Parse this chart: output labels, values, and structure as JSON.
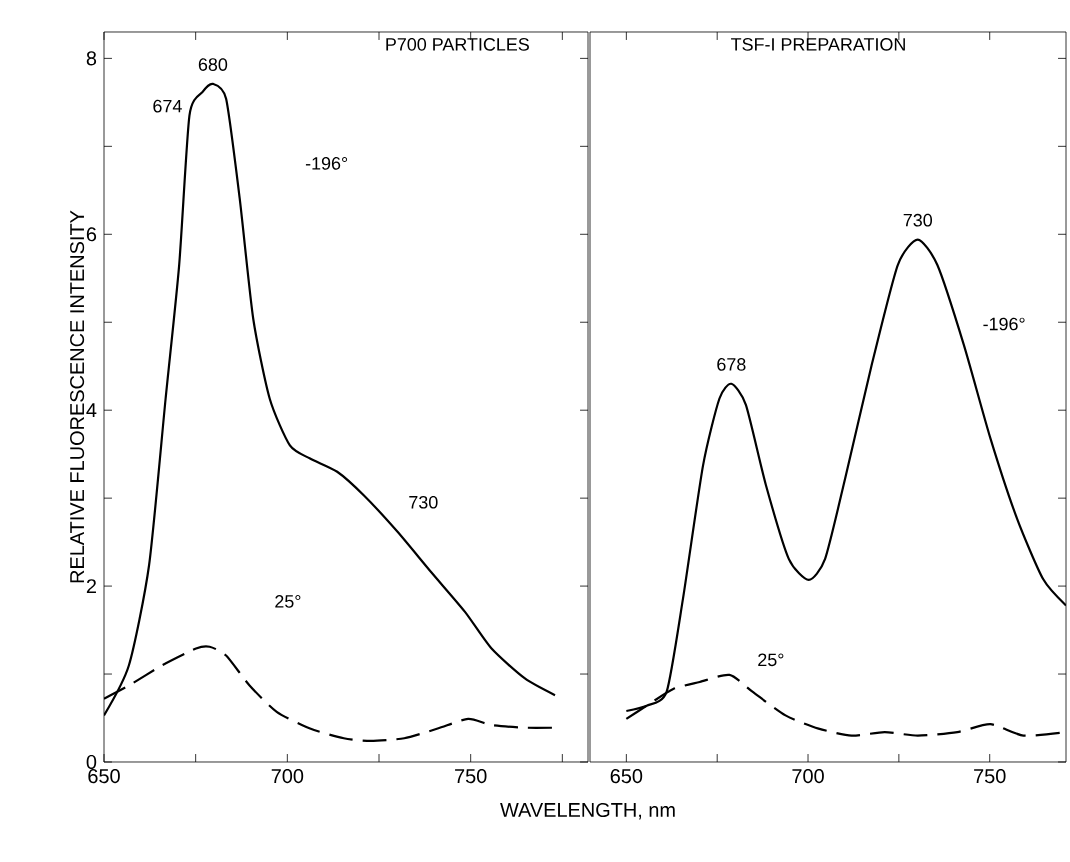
{
  "chart_data": [
    {
      "type": "line",
      "title": "P700 PARTICLES",
      "xlabel": "WAVELENGTH, nm",
      "ylabel": "RELATIVE FLUORESCENCE INTENSITY",
      "xlim": [
        650,
        782
      ],
      "xticks": [
        650,
        {
          "value": 675,
          "label": null
        },
        700,
        {
          "value": 725,
          "label": null
        },
        750,
        {
          "value": 775,
          "label": null
        }
      ],
      "ylim": [
        0,
        8.3
      ],
      "yticks": [
        0,
        {
          "value": 1,
          "label": null
        },
        2,
        {
          "value": 3,
          "label": null
        },
        4,
        {
          "value": 5,
          "label": null
        },
        6,
        {
          "value": 7,
          "label": null
        },
        8
      ],
      "series": [
        {
          "color": "#000000",
          "line_style": "solid",
          "x": [
            650,
            656.8,
            662.3,
            666.8,
            670.5,
            673.3,
            676.9,
            679.7,
            683.3,
            687,
            690.7,
            695.2,
            700.7,
            706.2,
            713.6,
            720.9,
            730,
            739.2,
            748.4,
            755.7,
            764.8,
            773
          ],
          "values": [
            0.53,
            1.1,
            2.24,
            4.13,
            5.65,
            7.35,
            7.62,
            7.71,
            7.54,
            6.41,
            5.04,
            4.13,
            3.6,
            3.45,
            3.3,
            3.03,
            2.62,
            2.16,
            1.71,
            1.29,
            0.95,
            0.76
          ]
        },
        {
          "color": "#000000",
          "line_style": "dashed",
          "x": [
            650,
            656.8,
            665.9,
            675.1,
            678.8,
            683.3,
            689.7,
            697.1,
            706.2,
            715.4,
            722.7,
            731.9,
            741,
            749.3,
            755.7,
            764.8,
            773
          ],
          "values": [
            0.72,
            0.87,
            1.1,
            1.29,
            1.31,
            1.21,
            0.87,
            0.57,
            0.38,
            0.27,
            0.24,
            0.27,
            0.38,
            0.49,
            0.42,
            0.39,
            0.39
          ]
        }
      ],
      "annotations": [
        {
          "text": "674",
          "x": 673.3,
          "y": 7.35
        },
        {
          "text": "680",
          "x": 679.7,
          "y": 7.71
        },
        {
          "text": "730",
          "x": 730,
          "y": 2.62
        },
        "-196°",
        "25°"
      ]
    },
    {
      "type": "line",
      "title": "TSF-I PREPARATION",
      "tick_labels": "x",
      "xlim": [
        640,
        771
      ],
      "xticks": [
        650,
        {
          "value": 675,
          "label": null
        },
        700,
        {
          "value": 725,
          "label": null
        },
        750
      ],
      "ylim": [
        0,
        8.3
      ],
      "yticks": [
        0,
        {
          "value": 1,
          "label": null
        },
        2,
        {
          "value": 3,
          "label": null
        },
        4,
        {
          "value": 5,
          "label": null
        },
        6,
        {
          "value": 7,
          "label": null
        },
        8
      ],
      "series": [
        {
          "color": "#000000",
          "line_style": "solid",
          "x": [
            650,
            655.6,
            661.1,
            665.6,
            671.1,
            675.6,
            678.9,
            682.9,
            688.4,
            694.7,
            700.2,
            704.7,
            710.2,
            717.5,
            724.7,
            730.2,
            735.6,
            742.9,
            750.2,
            757.5,
            764.7,
            771
          ],
          "values": [
            0.58,
            0.64,
            0.8,
            1.86,
            3.37,
            4.13,
            4.3,
            4.06,
            3.15,
            2.31,
            2.07,
            2.31,
            3.22,
            4.51,
            5.65,
            5.94,
            5.65,
            4.74,
            3.68,
            2.77,
            2.08,
            1.78
          ]
        },
        {
          "color": "#000000",
          "line_style": "dashed",
          "x": [
            650,
            655.6,
            662.9,
            670.2,
            678.4,
            684.7,
            693.8,
            702.9,
            712,
            721.1,
            730.2,
            741.1,
            750.2,
            759.3,
            771
          ],
          "values": [
            0.49,
            0.64,
            0.83,
            0.91,
            0.99,
            0.8,
            0.53,
            0.38,
            0.3,
            0.34,
            0.3,
            0.34,
            0.43,
            0.3,
            0.34
          ]
        }
      ],
      "annotations": [
        {
          "text": "678",
          "x": 678.9,
          "y": 4.3
        },
        {
          "text": "730",
          "x": 730.2,
          "y": 5.94
        },
        "-196°",
        "25°"
      ]
    }
  ]
}
